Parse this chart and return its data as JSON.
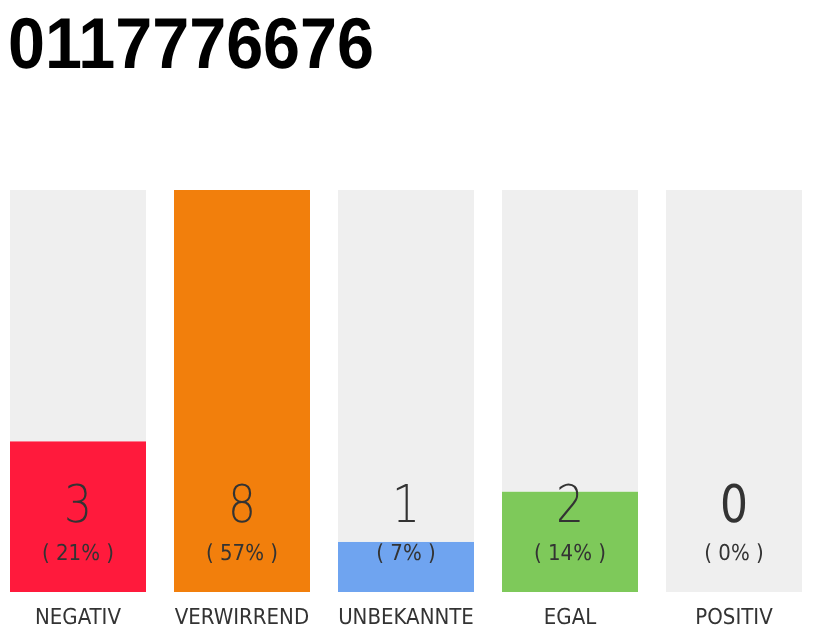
{
  "chart_data": {
    "type": "bar",
    "title": "0117776676",
    "categories": [
      "NEGATIV",
      "VERWIRREND",
      "UNBEKANNTE",
      "EGAL",
      "POSITIV"
    ],
    "stacked": true,
    "series": [
      {
        "colors": [
          "#ff1a3c",
          "#f27f0c",
          "#6fa4f0",
          "#7ec95a",
          "#cccccc"
        ],
        "values": [
          3,
          8,
          1,
          2,
          0
        ],
        "value_labels": [
          "3",
          "8",
          "1",
          "2",
          null
        ]
      },
      {
        "color": "#efefef",
        "values": [
          5,
          0,
          7,
          6,
          8
        ]
      }
    ],
    "ylim": [
      0,
      8
    ],
    "tick_labels": "x",
    "annotations": [
      {
        "text": "( 21% )",
        "x": "NEGATIV",
        "y": 0
      },
      {
        "text": "( 57% )",
        "x": "VERWIRREND",
        "y": 0
      },
      {
        "text": "( 7% )",
        "x": "UNBEKANNTE",
        "y": 0
      },
      {
        "text": "( 14% )",
        "x": "EGAL",
        "y": 0
      },
      {
        "text": "( 0% )",
        "x": "POSITIV",
        "y": 0
      },
      {
        "text": "0",
        "x": "POSITIV",
        "y": 0
      }
    ]
  }
}
